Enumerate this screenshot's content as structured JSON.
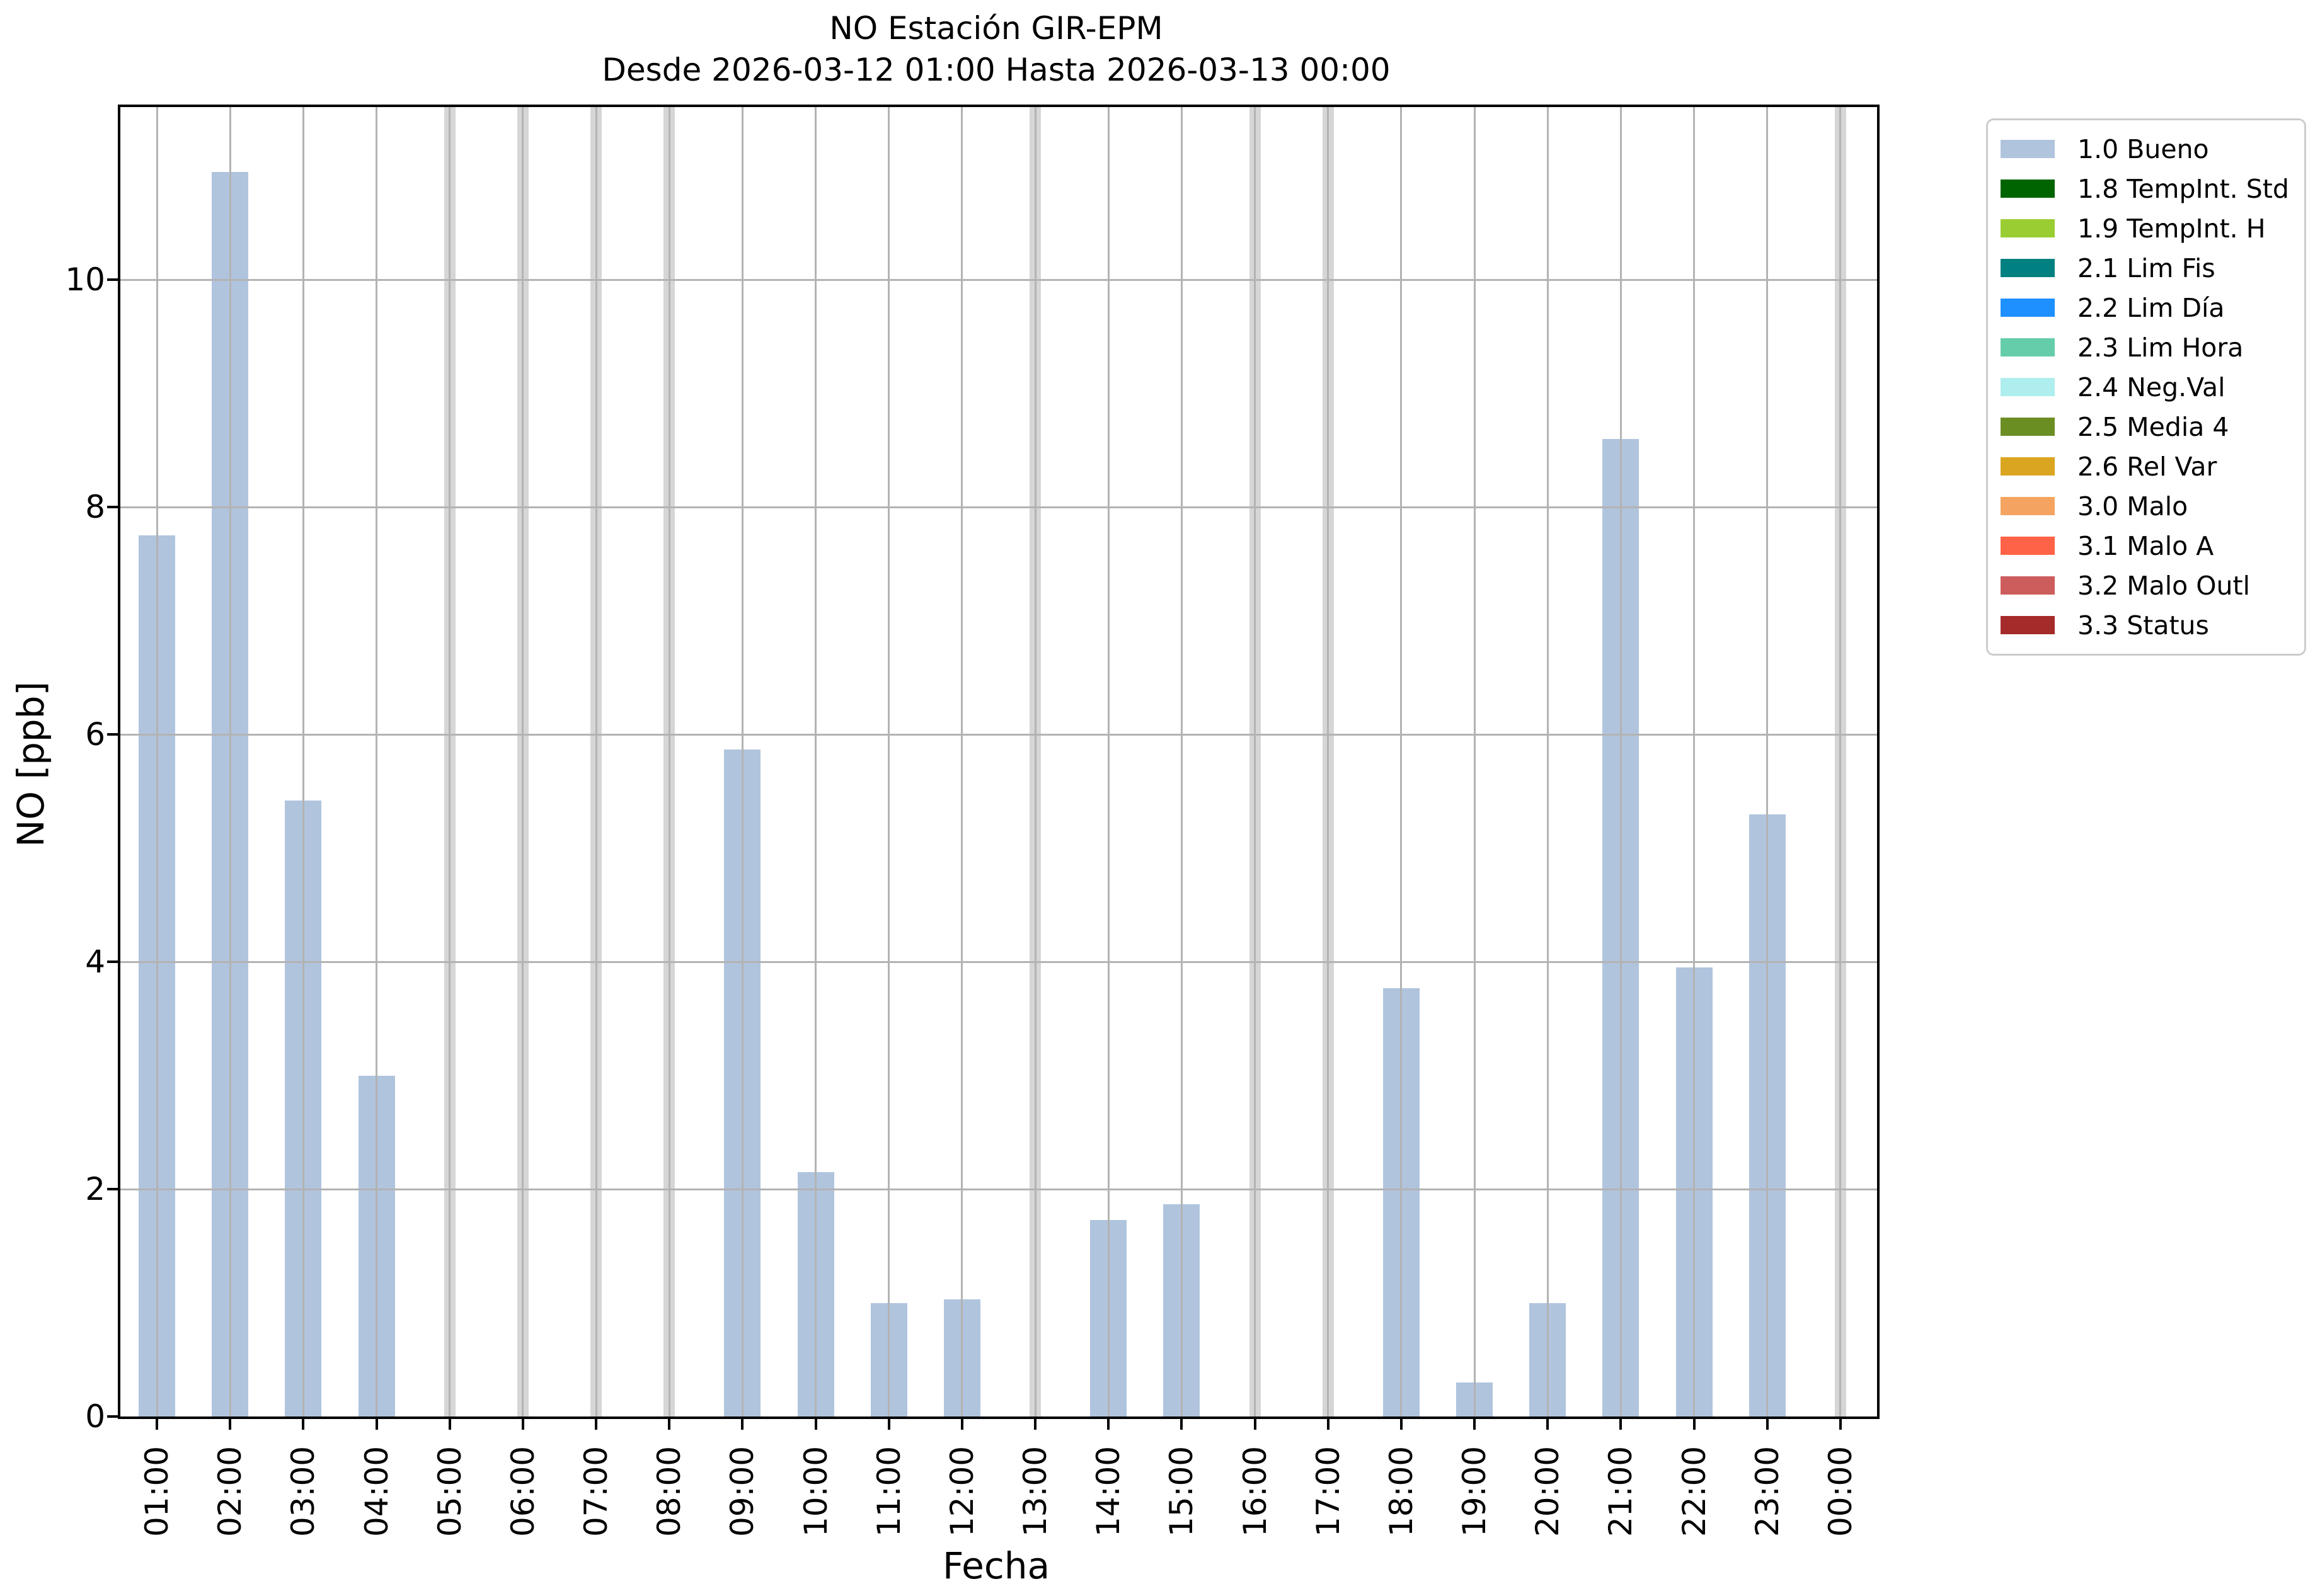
{
  "figure": {
    "title_line1": "NO Estación GIR-EPM",
    "title_line2": "Desde 2026-03-12 01:00 Hasta 2026-03-13 00:00"
  },
  "chart_data": {
    "type": "bar",
    "title": "NO Estación GIR-EPM",
    "subtitle": "Desde 2026-03-12 01:00 Hasta 2026-03-13 00:00",
    "xlabel": "Fecha",
    "ylabel": "NO [ppb]",
    "ylim": [
      0,
      11.52
    ],
    "yticks": [
      0,
      2,
      4,
      6,
      8,
      10
    ],
    "grid": true,
    "legend_position": "outside upper right",
    "bar_series_name": "1.0 Bueno",
    "bar_color": "#b0c4de",
    "missing_band_color": "#d6d6d6",
    "grid_color": "#b3b3b3",
    "categories": [
      "01:00",
      "02:00",
      "03:00",
      "04:00",
      "05:00",
      "06:00",
      "07:00",
      "08:00",
      "09:00",
      "10:00",
      "11:00",
      "12:00",
      "13:00",
      "14:00",
      "15:00",
      "16:00",
      "17:00",
      "18:00",
      "19:00",
      "20:00",
      "21:00",
      "22:00",
      "23:00",
      "00:00"
    ],
    "values": [
      7.75,
      10.95,
      5.42,
      3.0,
      null,
      null,
      null,
      null,
      5.87,
      2.15,
      1.0,
      1.03,
      null,
      1.73,
      1.87,
      null,
      null,
      3.77,
      0.3,
      1.0,
      8.6,
      3.95,
      5.3,
      null
    ],
    "missing_hours": [
      "05:00",
      "06:00",
      "07:00",
      "08:00",
      "13:00",
      "16:00",
      "17:00",
      "00:00"
    ]
  },
  "legend": {
    "items": [
      {
        "label": "1.0 Bueno",
        "color": "#b0c4de"
      },
      {
        "label": "1.8 TempInt. Std",
        "color": "#006400"
      },
      {
        "label": "1.9 TempInt. H",
        "color": "#9acd32"
      },
      {
        "label": "2.1 Lim Fis",
        "color": "#008080"
      },
      {
        "label": "2.2 Lim Día",
        "color": "#1e90ff"
      },
      {
        "label": "2.3 Lim Hora",
        "color": "#66cdaa"
      },
      {
        "label": "2.4 Neg.Val",
        "color": "#afeeee"
      },
      {
        "label": "2.5 Media 4",
        "color": "#6b8e23"
      },
      {
        "label": "2.6 Rel Var",
        "color": "#daa520"
      },
      {
        "label": "3.0 Malo",
        "color": "#f4a460"
      },
      {
        "label": "3.1 Malo A",
        "color": "#ff6347"
      },
      {
        "label": "3.2 Malo Outl",
        "color": "#cd5c5c"
      },
      {
        "label": "3.3 Status",
        "color": "#a52a2a"
      }
    ]
  }
}
